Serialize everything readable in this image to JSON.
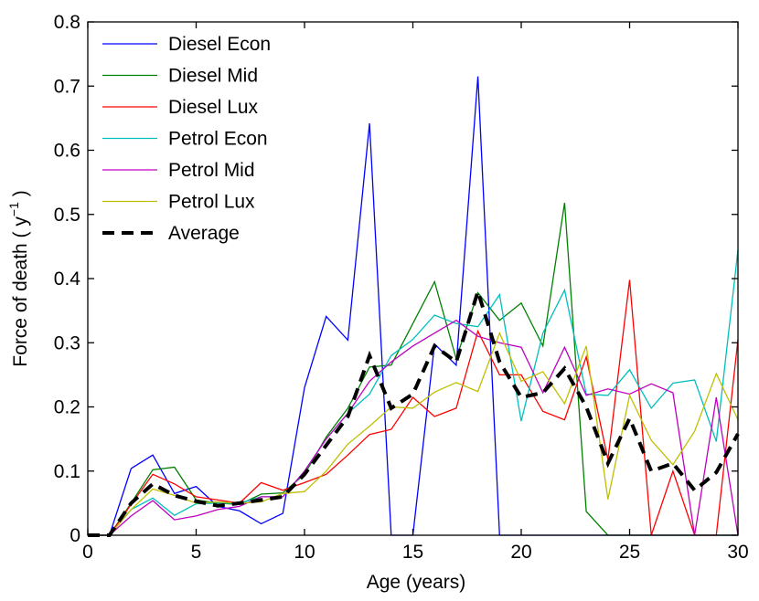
{
  "chart_data": {
    "type": "line",
    "title": "",
    "xlabel": "Age (years)",
    "ylabel_main": "Force of death ( y",
    "ylabel_sup": "−1",
    "ylabel_end": " )",
    "xlim": [
      0,
      30
    ],
    "ylim": [
      0,
      0.8
    ],
    "xticks": [
      0,
      5,
      10,
      15,
      20,
      25,
      30
    ],
    "xtick_labels": [
      "0",
      "5",
      "10",
      "15",
      "20",
      "25",
      "30"
    ],
    "yticks": [
      0,
      0.1,
      0.2,
      0.3,
      0.4,
      0.5,
      0.6,
      0.7,
      0.8
    ],
    "ytick_labels": [
      "0",
      "0.1",
      "0.2",
      "0.3",
      "0.4",
      "0.5",
      "0.6",
      "0.7",
      "0.8"
    ],
    "grid": false,
    "legend_position": "top-left",
    "x": [
      0,
      1,
      2,
      3,
      4,
      5,
      6,
      7,
      8,
      9,
      10,
      11,
      12,
      13,
      14,
      15,
      16,
      17,
      18,
      19,
      20,
      21,
      22,
      23,
      24,
      25,
      26,
      27,
      28,
      29,
      30
    ],
    "series": [
      {
        "name": "Diesel Econ",
        "color": "#0000ff",
        "dashed": false,
        "values": [
          0,
          0,
          0.104,
          0.125,
          0.065,
          0.076,
          0.045,
          0.038,
          0.018,
          0.034,
          0.23,
          0.341,
          0.304,
          0.642,
          0,
          0,
          0.298,
          0.265,
          0.715,
          0,
          0,
          0,
          0,
          0,
          0,
          0,
          0,
          0,
          0,
          0,
          0
        ]
      },
      {
        "name": "Diesel Mid",
        "color": "#008000",
        "dashed": false,
        "values": [
          0,
          0,
          0.05,
          0.102,
          0.106,
          0.055,
          0.05,
          0.048,
          0.064,
          0.066,
          0.095,
          0.153,
          0.198,
          0.262,
          0.265,
          0.33,
          0.395,
          0.275,
          0.378,
          0.335,
          0.362,
          0.295,
          0.518,
          0.037,
          0,
          0,
          0,
          0,
          0,
          0,
          0
        ]
      },
      {
        "name": "Diesel Lux",
        "color": "#ff0000",
        "dashed": false,
        "values": [
          0,
          0,
          0.048,
          0.095,
          0.08,
          0.06,
          0.055,
          0.05,
          0.082,
          0.07,
          0.082,
          0.095,
          0.125,
          0.157,
          0.165,
          0.215,
          0.185,
          0.198,
          0.318,
          0.25,
          0.25,
          0.193,
          0.18,
          0.278,
          0.118,
          0.398,
          0,
          0.1,
          0,
          0,
          0.305
        ]
      },
      {
        "name": "Petrol Econ",
        "color": "#00bfbf",
        "dashed": false,
        "values": [
          0,
          0,
          0.04,
          0.058,
          0.031,
          0.049,
          0.05,
          0.05,
          0.06,
          0.06,
          0.1,
          0.15,
          0.19,
          0.22,
          0.28,
          0.305,
          0.343,
          0.33,
          0.325,
          0.375,
          0.178,
          0.315,
          0.382,
          0.22,
          0.218,
          0.258,
          0.198,
          0.237,
          0.242,
          0.146,
          0.445
        ]
      },
      {
        "name": "Petrol Mid",
        "color": "#bf00bf",
        "dashed": false,
        "values": [
          0,
          0,
          0.03,
          0.054,
          0.024,
          0.03,
          0.04,
          0.045,
          0.06,
          0.06,
          0.1,
          0.15,
          0.19,
          0.24,
          0.27,
          0.295,
          0.315,
          0.335,
          0.31,
          0.3,
          0.293,
          0.222,
          0.293,
          0.218,
          0.228,
          0.22,
          0.236,
          0.222,
          0,
          0.215,
          0
        ]
      },
      {
        "name": "Petrol Lux",
        "color": "#bfbf00",
        "dashed": false,
        "values": [
          0,
          0,
          0.04,
          0.072,
          0.062,
          0.05,
          0.052,
          0.05,
          0.052,
          0.065,
          0.068,
          0.1,
          0.142,
          0.17,
          0.2,
          0.198,
          0.223,
          0.238,
          0.224,
          0.315,
          0.24,
          0.255,
          0.205,
          0.295,
          0.056,
          0.218,
          0.148,
          0.11,
          0.162,
          0.252,
          0.18
        ]
      },
      {
        "name": "Average",
        "color": "#000000",
        "dashed": true,
        "values": [
          0,
          0,
          0.05,
          0.08,
          0.062,
          0.053,
          0.046,
          0.05,
          0.055,
          0.06,
          0.095,
          0.14,
          0.185,
          0.28,
          0.198,
          0.22,
          0.295,
          0.27,
          0.38,
          0.27,
          0.215,
          0.222,
          0.26,
          0.2,
          0.112,
          0.182,
          0.1,
          0.112,
          0.07,
          0.098,
          0.158
        ]
      }
    ]
  }
}
